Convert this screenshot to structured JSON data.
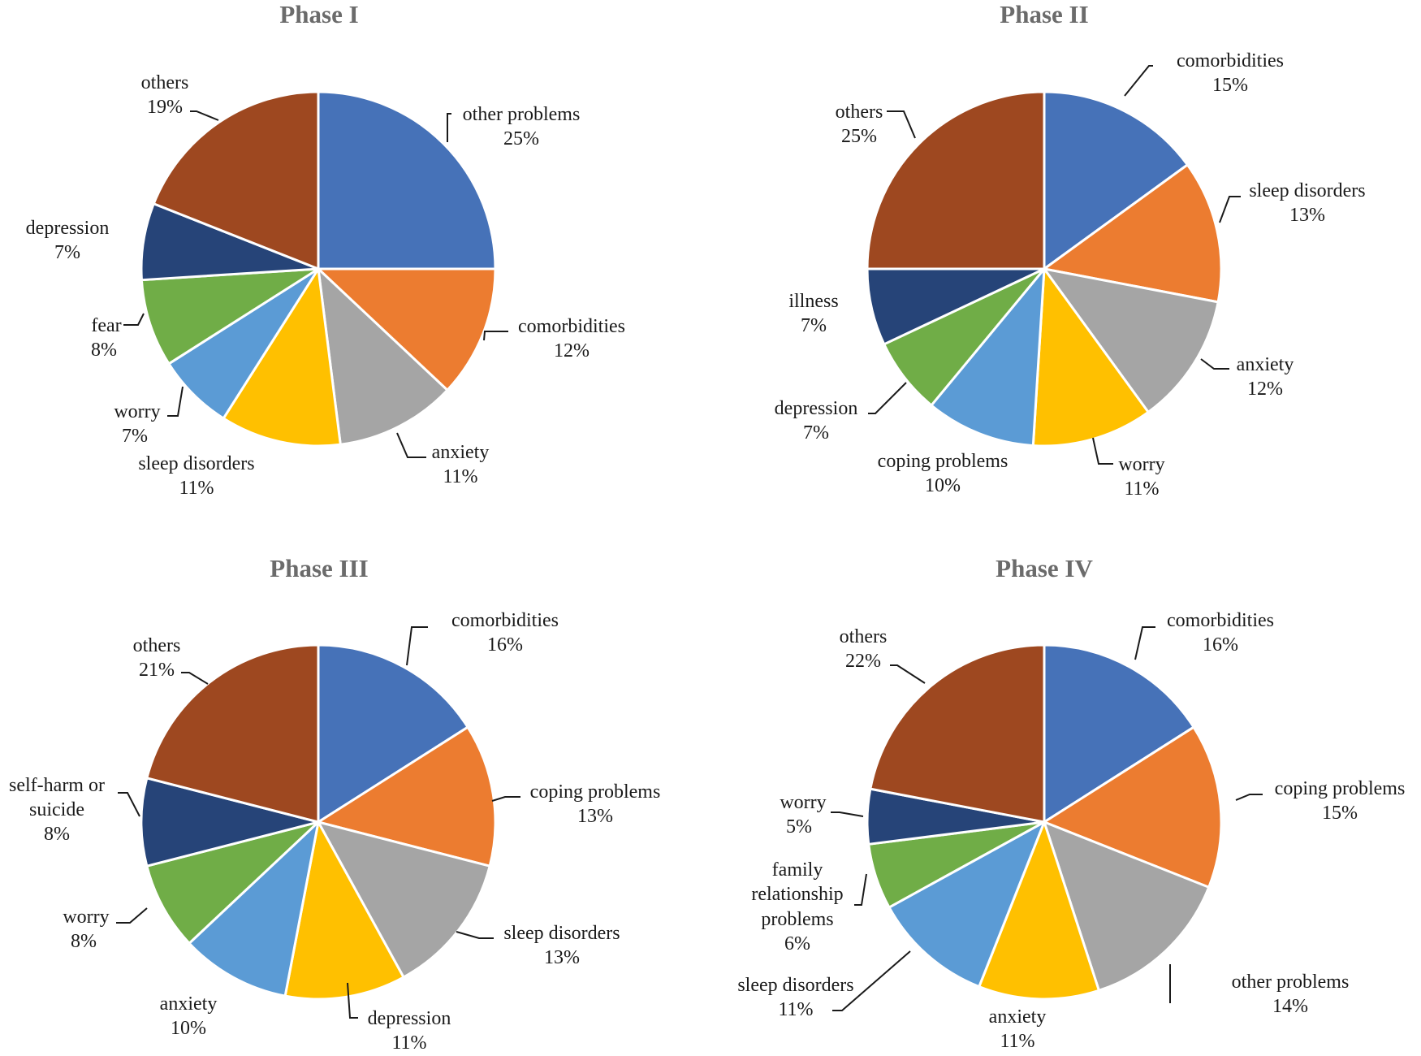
{
  "figure_colors": [
    "#4672b8",
    "#ec7c30",
    "#a5a5a5",
    "#ffc000",
    "#5b9bd5",
    "#70ad47",
    "#264478",
    "#9e4820"
  ],
  "chart_data": [
    {
      "type": "pie",
      "title": "Phase I",
      "slices": [
        {
          "label": "other problems",
          "value": 25,
          "pct": "25%",
          "color": "#4672b8"
        },
        {
          "label": "comorbidities",
          "value": 12,
          "pct": "12%",
          "color": "#ec7c30"
        },
        {
          "label": "anxiety",
          "value": 11,
          "pct": "11%",
          "color": "#a5a5a5"
        },
        {
          "label": "sleep disorders",
          "value": 11,
          "pct": "11%",
          "color": "#ffc000"
        },
        {
          "label": "worry",
          "value": 7,
          "pct": "7%",
          "color": "#5b9bd5"
        },
        {
          "label": "fear",
          "value": 8,
          "pct": "8%",
          "color": "#70ad47"
        },
        {
          "label": "depression",
          "value": 7,
          "pct": "7%",
          "color": "#264478"
        },
        {
          "label": "others",
          "value": 19,
          "pct": "19%",
          "color": "#9e4820"
        }
      ]
    },
    {
      "type": "pie",
      "title": "Phase II",
      "slices": [
        {
          "label": "comorbidities",
          "value": 15,
          "pct": "15%",
          "color": "#4672b8"
        },
        {
          "label": "sleep disorders",
          "value": 13,
          "pct": "13%",
          "color": "#ec7c30"
        },
        {
          "label": "anxiety",
          "value": 12,
          "pct": "12%",
          "color": "#a5a5a5"
        },
        {
          "label": "worry",
          "value": 11,
          "pct": "11%",
          "color": "#ffc000"
        },
        {
          "label": "coping problems",
          "value": 10,
          "pct": "10%",
          "color": "#5b9bd5"
        },
        {
          "label": "depression",
          "value": 7,
          "pct": "7%",
          "color": "#70ad47"
        },
        {
          "label": "illness",
          "value": 7,
          "pct": "7%",
          "color": "#264478"
        },
        {
          "label": "others",
          "value": 25,
          "pct": "25%",
          "color": "#9e4820"
        }
      ]
    },
    {
      "type": "pie",
      "title": "Phase III",
      "slices": [
        {
          "label": "comorbidities",
          "value": 16,
          "pct": "16%",
          "color": "#4672b8"
        },
        {
          "label": "coping problems",
          "value": 13,
          "pct": "13%",
          "color": "#ec7c30"
        },
        {
          "label": "sleep disorders",
          "value": 13,
          "pct": "13%",
          "color": "#a5a5a5"
        },
        {
          "label": "depression",
          "value": 11,
          "pct": "11%",
          "color": "#ffc000"
        },
        {
          "label": "anxiety",
          "value": 10,
          "pct": "10%",
          "color": "#5b9bd5"
        },
        {
          "label": "worry",
          "value": 8,
          "pct": "8%",
          "color": "#70ad47"
        },
        {
          "label": "self-harm  or suicide",
          "value": 8,
          "pct": "8%",
          "color": "#264478"
        },
        {
          "label": "others",
          "value": 21,
          "pct": "21%",
          "color": "#9e4820"
        }
      ]
    },
    {
      "type": "pie",
      "title": "Phase IV",
      "slices": [
        {
          "label": "comorbidities",
          "value": 16,
          "pct": "16%",
          "color": "#4672b8"
        },
        {
          "label": "coping problems",
          "value": 15,
          "pct": "15%",
          "color": "#ec7c30"
        },
        {
          "label": "other problems",
          "value": 14,
          "pct": "14%",
          "color": "#a5a5a5"
        },
        {
          "label": "anxiety",
          "value": 11,
          "pct": "11%",
          "color": "#ffc000"
        },
        {
          "label": "sleep disorders",
          "value": 11,
          "pct": "11%",
          "color": "#5b9bd5"
        },
        {
          "label": "family relationship problems",
          "value": 6,
          "pct": "6%",
          "color": "#70ad47"
        },
        {
          "label": "worry",
          "value": 5,
          "pct": "5%",
          "color": "#264478"
        },
        {
          "label": "others",
          "value": 22,
          "pct": "22%",
          "color": "#9e4820"
        }
      ]
    }
  ]
}
